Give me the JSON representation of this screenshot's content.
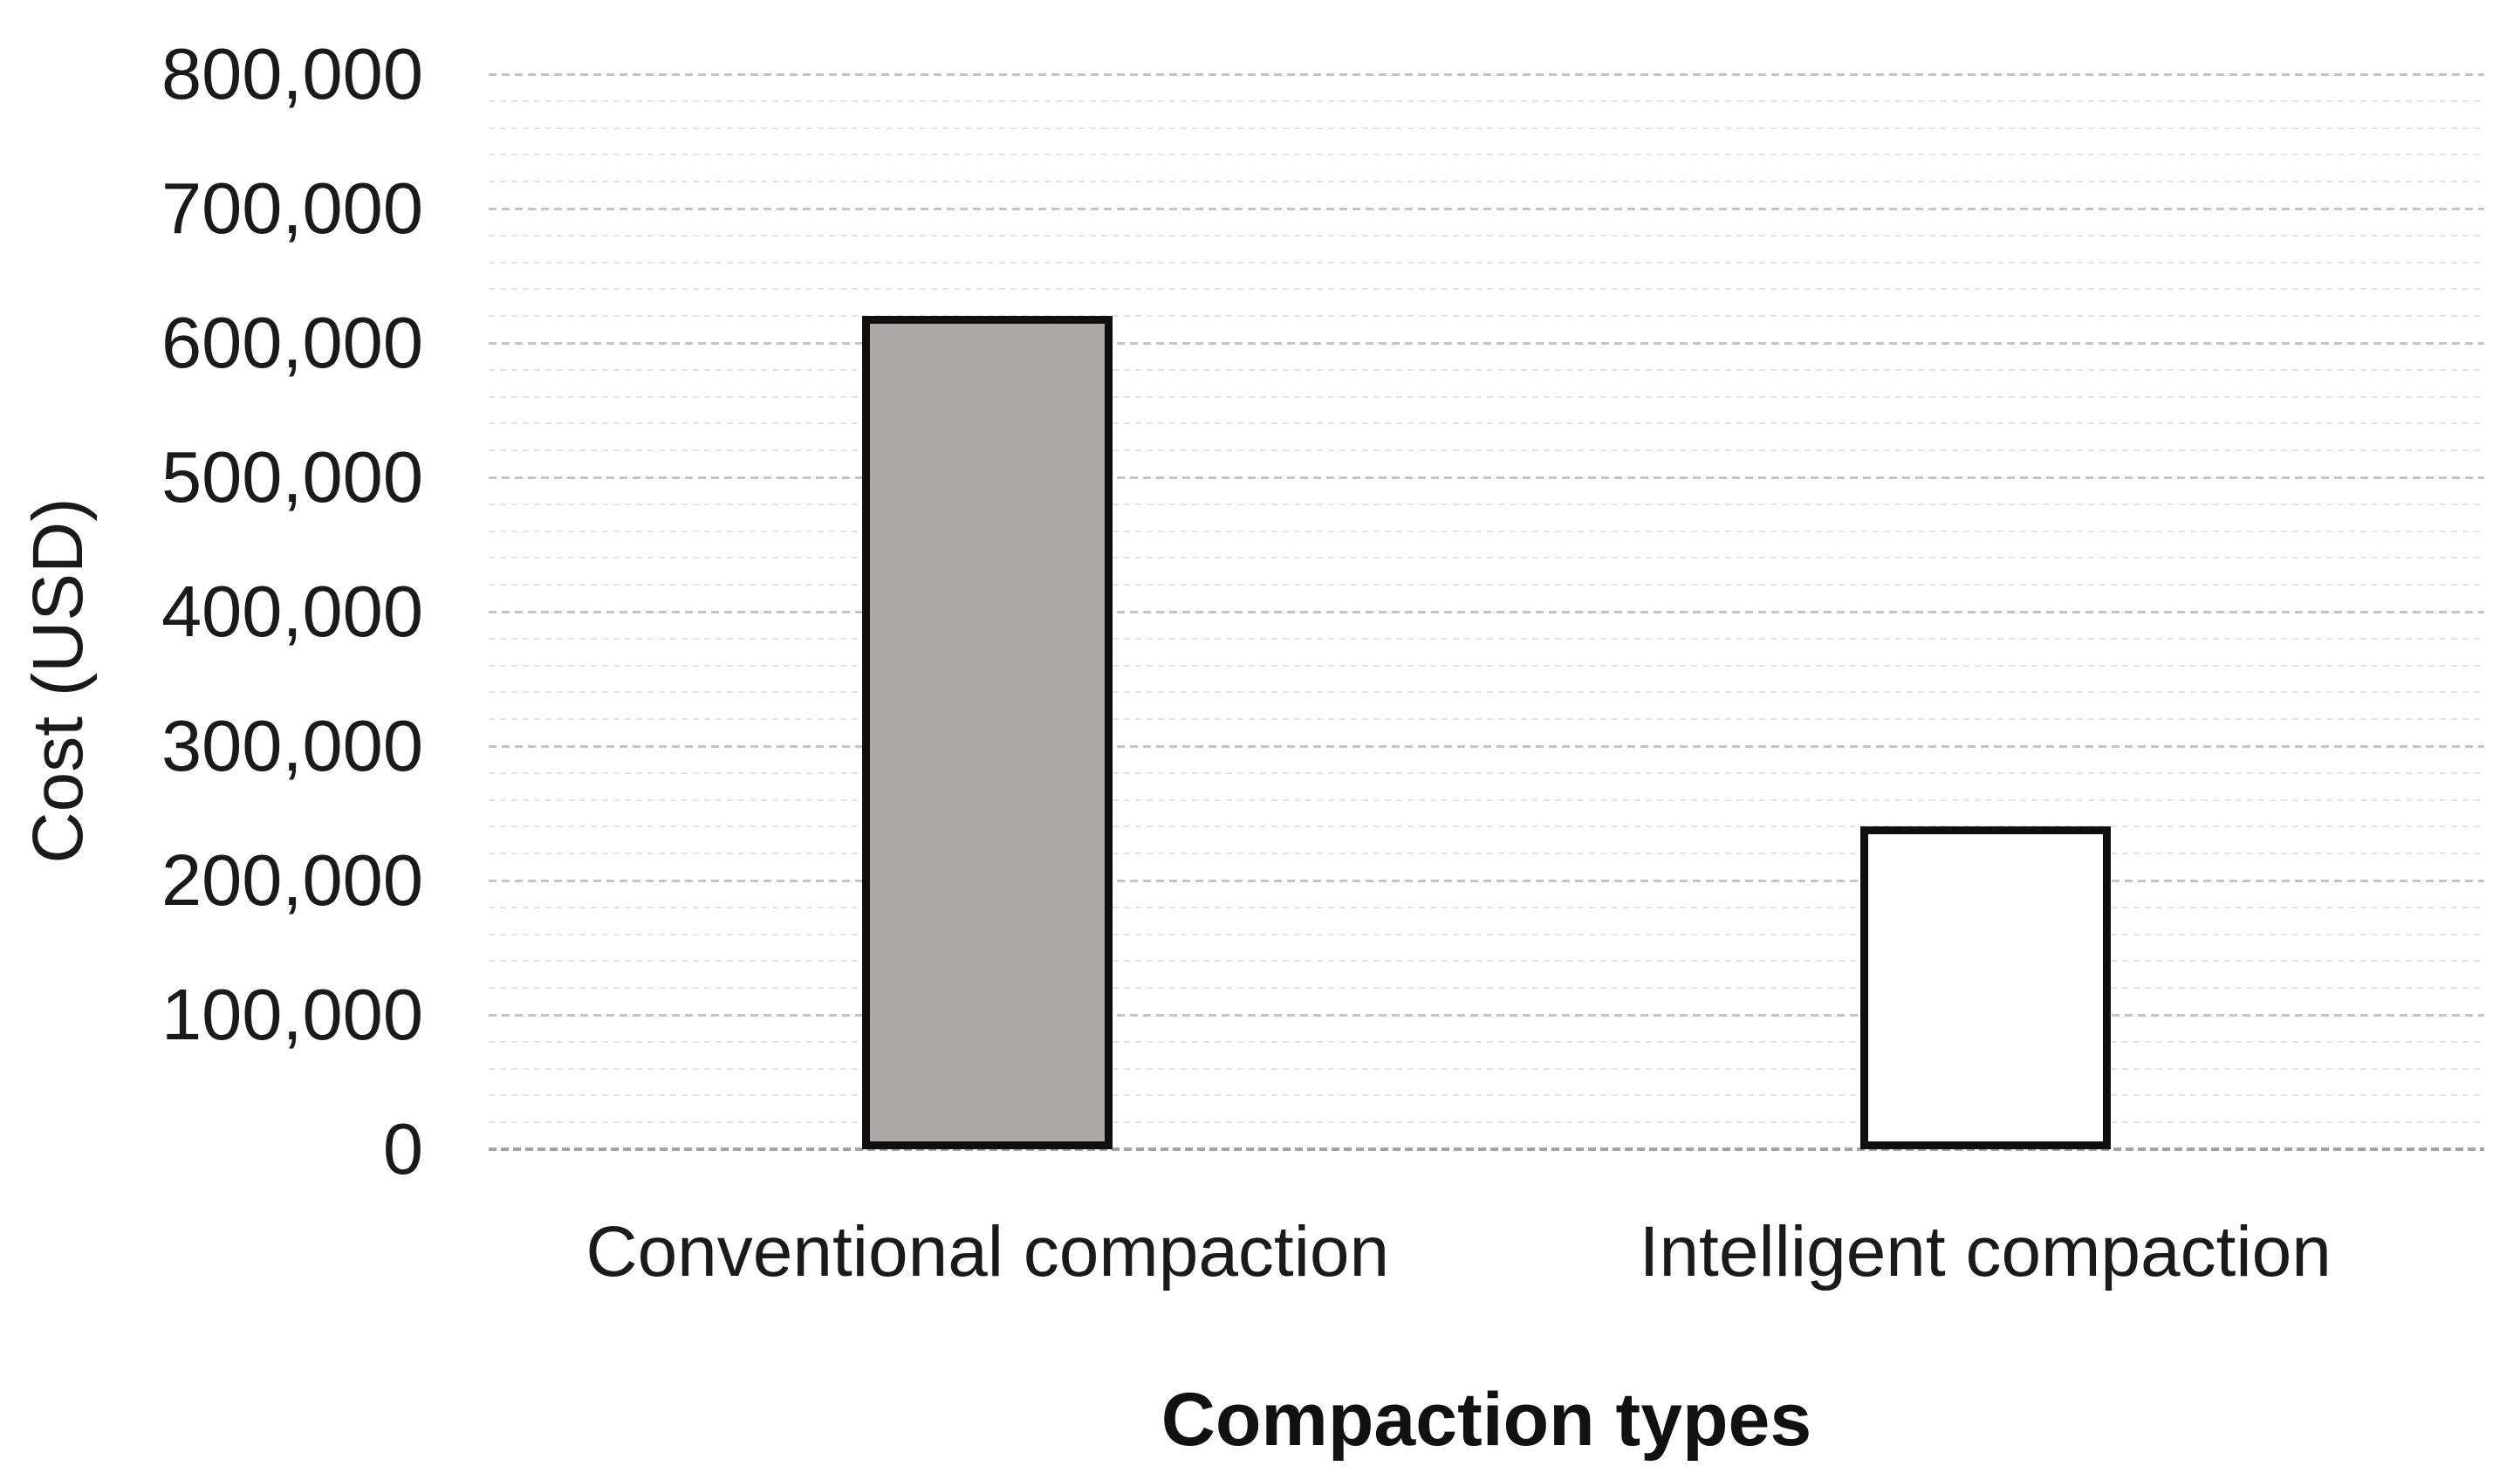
{
  "chart_data": {
    "type": "bar",
    "title": "",
    "categories": [
      "Conventional compaction",
      "Intelligent compaction"
    ],
    "values": [
      620000,
      240000
    ],
    "xlabel": "Compaction types",
    "ylabel": "Cost (USD)",
    "ylim": [
      0,
      800000
    ],
    "y_major_step": 100000,
    "y_minor_step": 20000,
    "y_tick_labels": [
      "0",
      "100,000",
      "200,000",
      "300,000",
      "400,000",
      "500,000",
      "600,000",
      "700,000",
      "800,000"
    ],
    "legend": "none",
    "grid": "horizontal; dotted minor lines every 20,000; dashed major lines every 100,000; darker dashed baseline at 0",
    "bar_fill_colors": [
      "#aca8a6",
      "#ffffff"
    ],
    "bar_border_color": "#0f0f0f",
    "colors": {
      "minor_gridline": "#e4e4e4",
      "major_gridline": "#c5c5c5",
      "baseline": "#a3a3a3",
      "text": "#1a1a1a",
      "background": "#ffffff"
    }
  }
}
